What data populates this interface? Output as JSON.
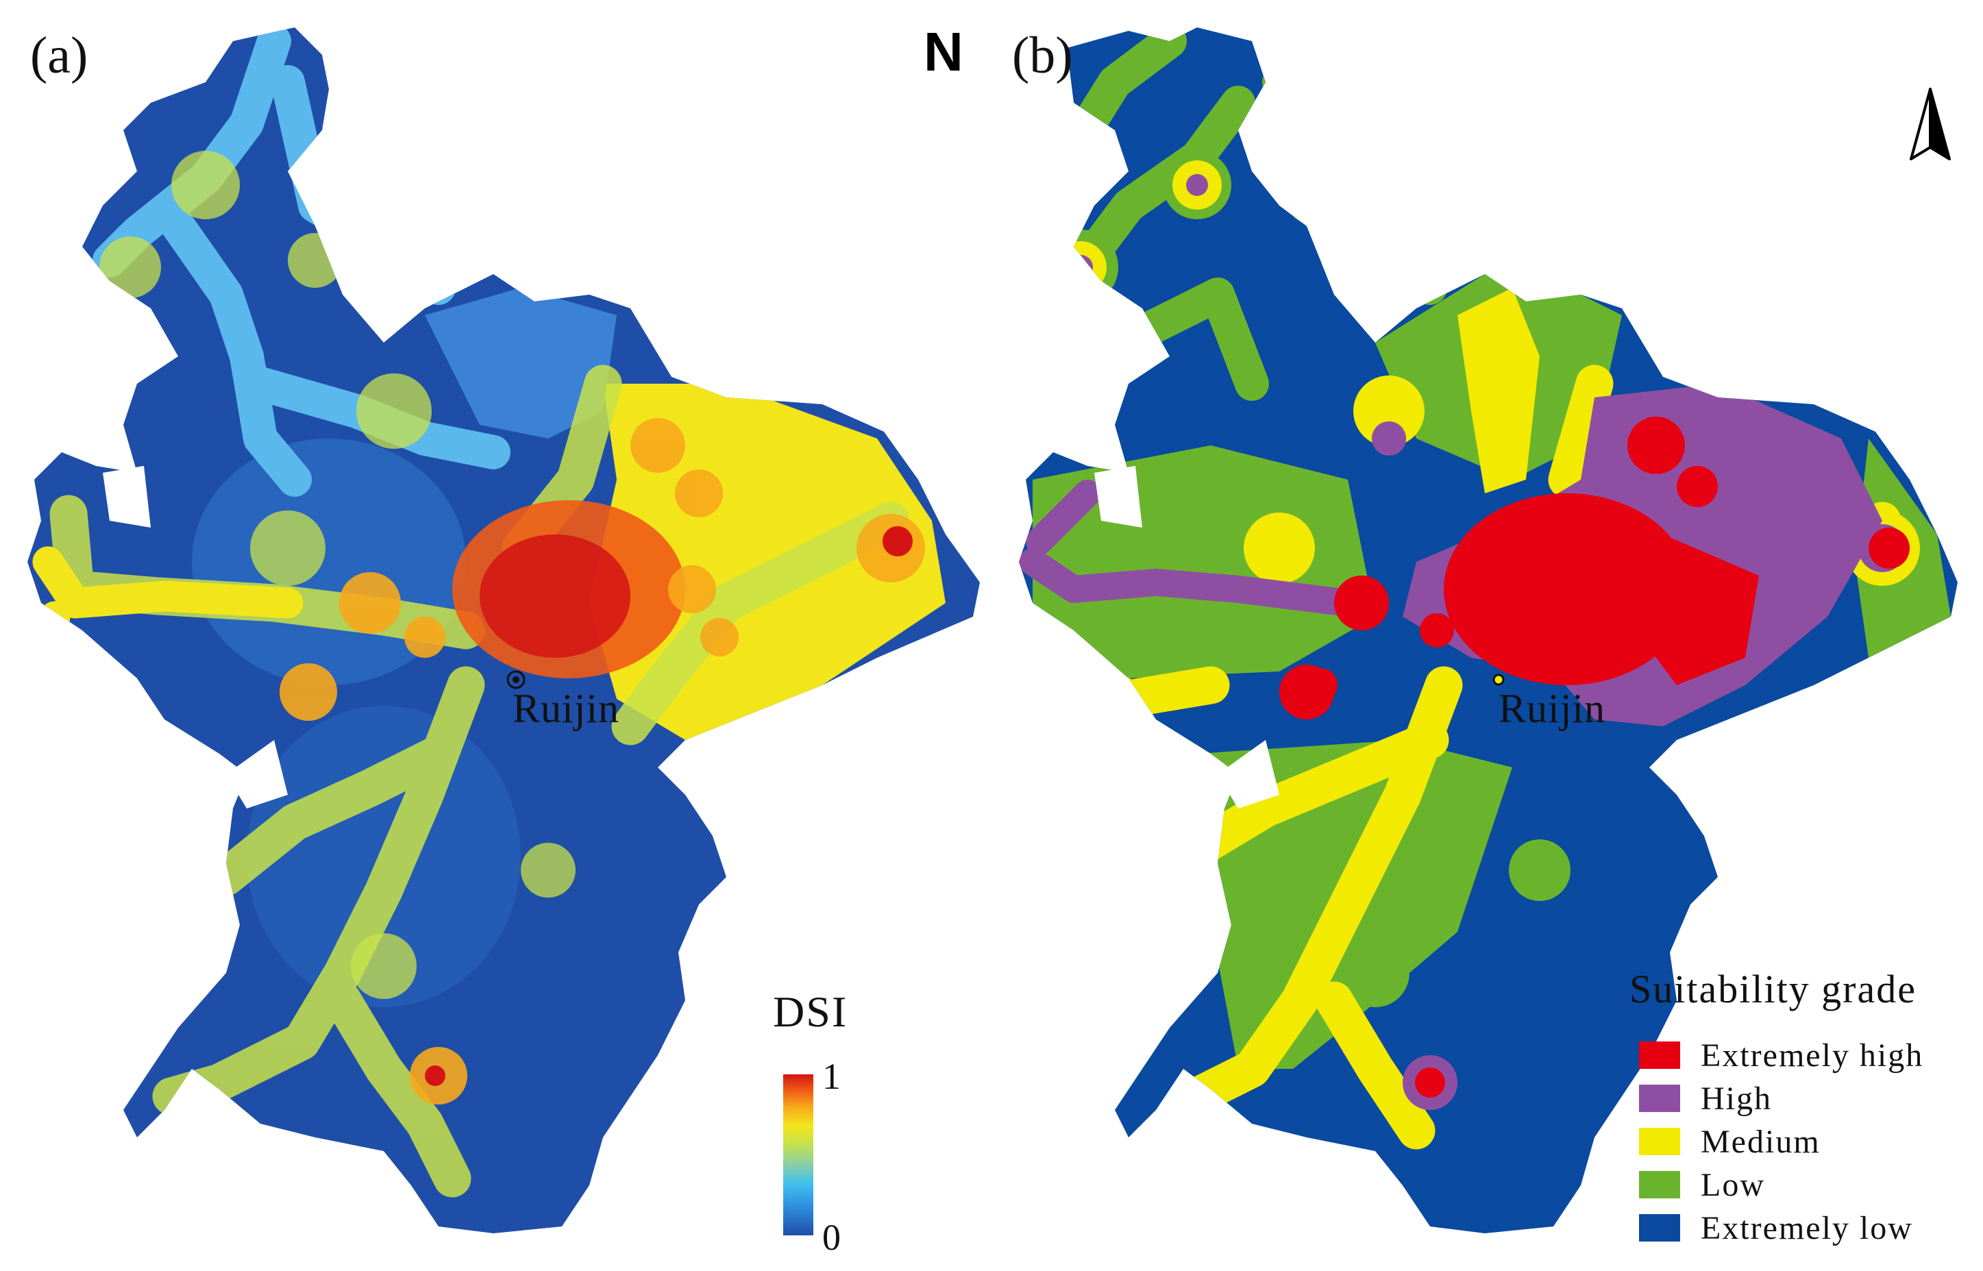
{
  "panels": {
    "a": {
      "label": "(a)",
      "city": "Ruijin"
    },
    "b": {
      "label": "(b)",
      "city": "Ruijin"
    }
  },
  "north_arrow": {
    "letter": "N",
    "icon": "north-arrow-icon"
  },
  "dsi_legend": {
    "title": "DSI",
    "max_label": "1",
    "min_label": "0",
    "colors": [
      "#1f4ea8",
      "#3fc0ee",
      "#c8e24a",
      "#f2e61a",
      "#ef5b16",
      "#d41414"
    ]
  },
  "suitability_legend": {
    "title": "Suitability grade",
    "items": [
      {
        "label": "Extremely high",
        "color": "#e60012"
      },
      {
        "label": "High",
        "color": "#8e4fa3"
      },
      {
        "label": "Medium",
        "color": "#f2ea00"
      },
      {
        "label": "Low",
        "color": "#6ab42d"
      },
      {
        "label": "Extremely low",
        "color": "#0a4aa0"
      }
    ]
  }
}
